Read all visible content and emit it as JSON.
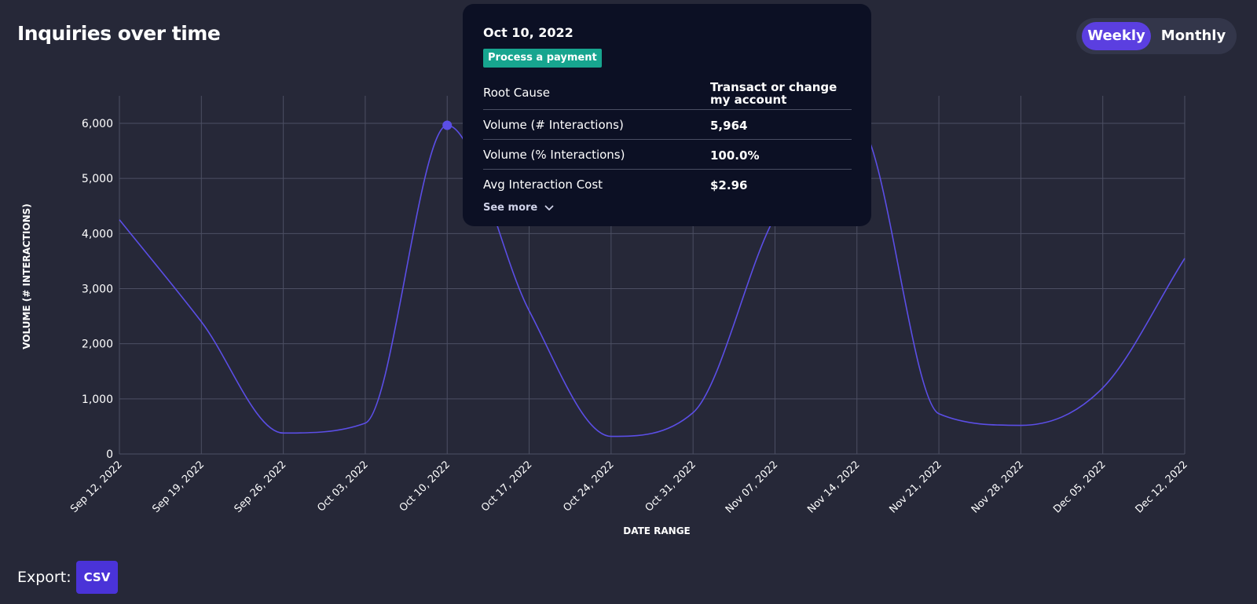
{
  "header": {
    "title": "Inquiries over time"
  },
  "toggle": {
    "weekly": "Weekly",
    "monthly": "Monthly",
    "active": "Weekly"
  },
  "tooltip": {
    "date": "Oct 10, 2022",
    "badge": "Process a payment",
    "badge_color": "#17a58f",
    "rows": [
      {
        "label": "Root Cause",
        "value": "Transact or change my account"
      },
      {
        "label": "Volume (# Interactions)",
        "value": "5,964"
      },
      {
        "label": "Volume (% Interactions)",
        "value": "100.0%"
      },
      {
        "label": "Avg Interaction Cost",
        "value": "$2.96"
      }
    ],
    "see_more": "See more",
    "see_more_icon": "chevron-down-icon"
  },
  "export": {
    "label": "Export:",
    "csv": "CSV"
  },
  "colors": {
    "background": "#262838",
    "line": "#5b4ee6",
    "accent": "#5b3fe0",
    "grid": "#4c4f63"
  },
  "chart_data": {
    "type": "line",
    "xlabel": "DATE RANGE",
    "ylabel": "VOLUME (# INTERACTIONS)",
    "categories": [
      "Sep 12, 2022",
      "Sep 19, 2022",
      "Sep 26, 2022",
      "Oct 03, 2022",
      "Oct 10, 2022",
      "Oct 17, 2022",
      "Oct 24, 2022",
      "Oct 31, 2022",
      "Nov 07, 2022",
      "Nov 14, 2022",
      "Nov 21, 2022",
      "Nov 28, 2022",
      "Dec 05, 2022",
      "Dec 12, 2022"
    ],
    "values": [
      4250,
      2400,
      380,
      560,
      5964,
      2600,
      320,
      750,
      4300,
      6000,
      730,
      520,
      1200,
      3550
    ],
    "yticks": [
      "0",
      "1,000",
      "2,000",
      "3,000",
      "4,000",
      "5,000",
      "6,000"
    ],
    "ylim": [
      0,
      6000
    ],
    "grid": true,
    "highlight_index": 4
  }
}
